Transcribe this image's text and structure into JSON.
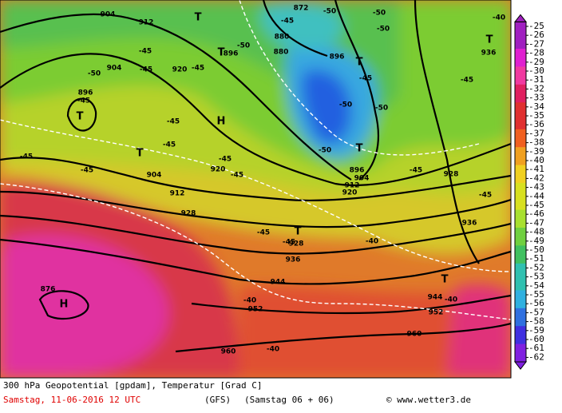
{
  "colorbar": {
    "labels": [
      "-25",
      "-26",
      "-27",
      "-28",
      "-29",
      "-30",
      "-31",
      "-32",
      "-33",
      "-34",
      "-35",
      "-36",
      "-37",
      "-38",
      "-39",
      "-40",
      "-41",
      "-42",
      "-43",
      "-44",
      "-45",
      "-46",
      "-47",
      "-48",
      "-49",
      "-50",
      "-51",
      "-52",
      "-53",
      "-54",
      "-55",
      "-56",
      "-57",
      "-58",
      "-59",
      "-60",
      "-61",
      "-62"
    ]
  },
  "map_labels": [
    "904",
    "912",
    "T",
    "872",
    "-50",
    "-50",
    "-50",
    "-40",
    "T",
    "936",
    "880",
    "-45",
    "880",
    "T",
    "896",
    "-50",
    "-45",
    "-50",
    "904",
    "-45",
    "920",
    "-45",
    "896",
    "T",
    "-45",
    "-45",
    "896",
    "-45",
    "T",
    "-45",
    "H",
    "-50",
    "-50",
    "-50",
    "T",
    "-45",
    "T",
    "-45",
    "-45",
    "904",
    "920",
    "-45",
    "912",
    "-45",
    "896",
    "904",
    "912",
    "920",
    "-45",
    "928",
    "-45",
    "928",
    "936",
    "T",
    "-45",
    "-45",
    "928",
    "-40",
    "936",
    "944",
    "T",
    "876",
    "H",
    "-40",
    "952",
    "944",
    "-40",
    "952",
    "960",
    "960",
    "-40"
  ],
  "footer": {
    "title": "300 hPa Geopotential [gpdam], Temperatur [Grad C]",
    "date": "Samstag, 11-06-2016  12 UTC",
    "model": "(GFS)",
    "run": "(Samstag 06 + 06)",
    "source": "© www.wetter3.de"
  }
}
